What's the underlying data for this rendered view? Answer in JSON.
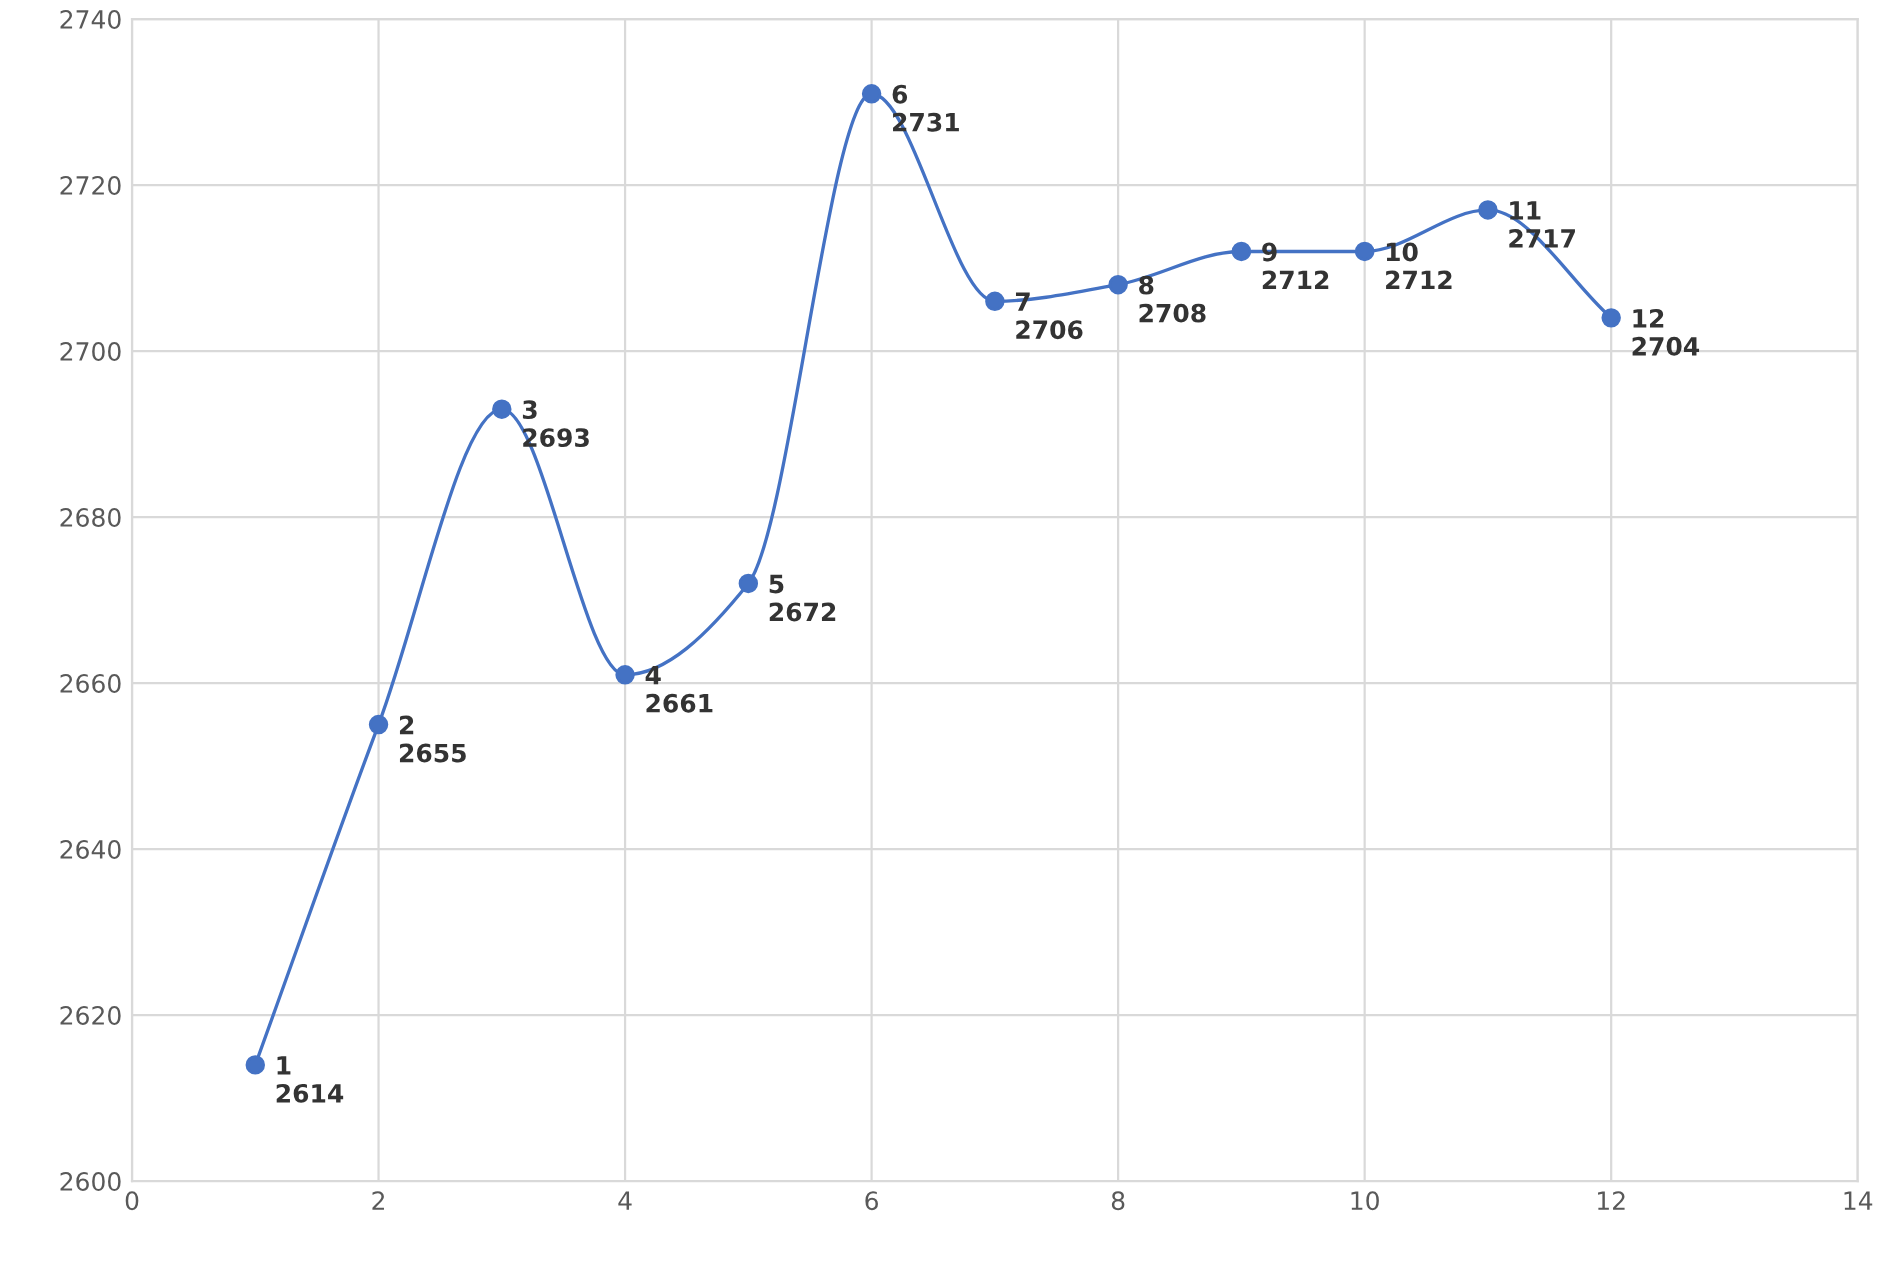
{
  "chart_data": {
    "type": "line",
    "x": [
      1,
      2,
      3,
      4,
      5,
      6,
      7,
      8,
      9,
      10,
      11,
      12
    ],
    "series": [
      {
        "color": "#4472c4",
        "values": [
          2614,
          2655,
          2693,
          2661,
          2672,
          2731,
          2706,
          2708,
          2712,
          2712,
          2717,
          2704
        ],
        "value_labels": [
          "1\n2614",
          "2\n2655",
          "3\n2693",
          "4\n2661",
          "5\n2672",
          "6\n2731",
          "7\n2706",
          "8\n2708",
          "9\n2712",
          "10\n2712",
          "11\n2717",
          "12\n2704"
        ]
      }
    ],
    "xlim": [
      0,
      14
    ],
    "xticks": [
      0,
      2,
      4,
      6,
      8,
      10,
      12,
      14
    ],
    "ylim": [
      2600,
      2740
    ],
    "yticks": [
      2600,
      2620,
      2640,
      2660,
      2680,
      2700,
      2720,
      2740
    ],
    "grid": true,
    "marker": "circle",
    "line_style": "solid"
  }
}
